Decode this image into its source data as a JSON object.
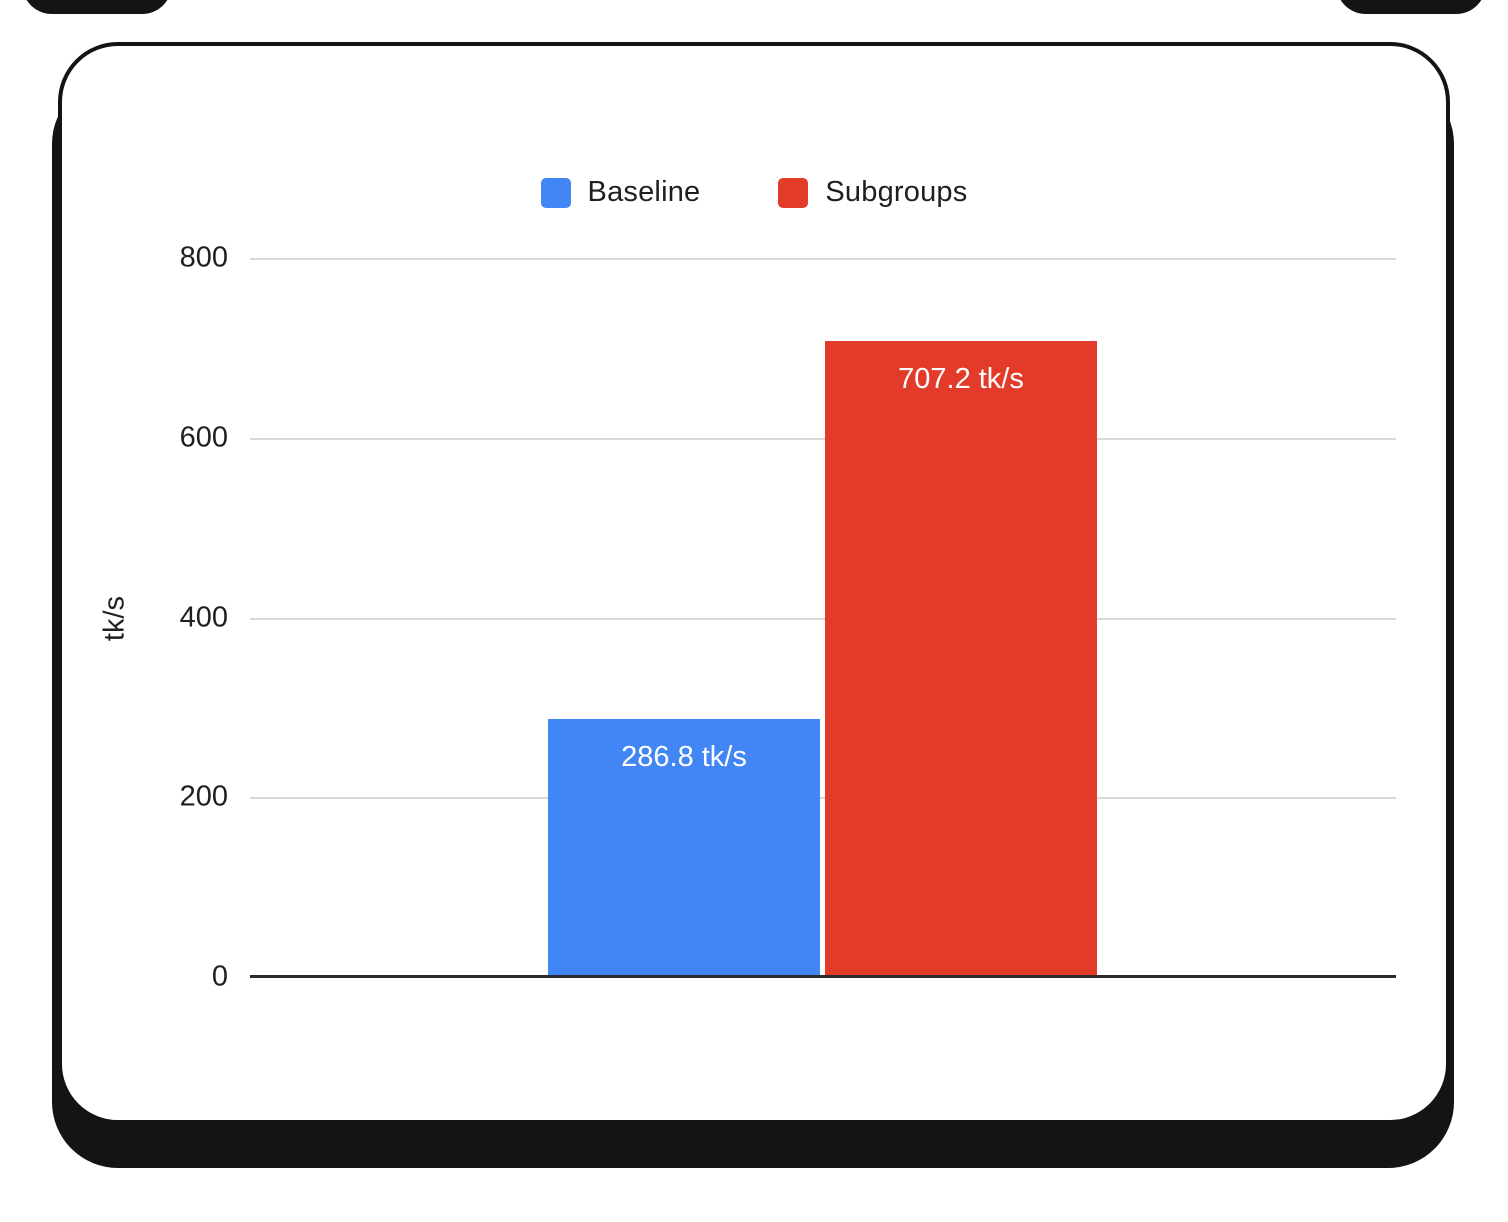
{
  "chart_data": {
    "type": "bar",
    "categories": [
      ""
    ],
    "series": [
      {
        "name": "Baseline",
        "values": [
          286.8
        ],
        "data_label": "286.8 tk/s",
        "color": "#4285F4"
      },
      {
        "name": "Subgroups",
        "values": [
          707.2
        ],
        "data_label": "707.2 tk/s",
        "color": "#E23B2A"
      }
    ],
    "title": "",
    "xlabel": "",
    "ylabel": "tk/s",
    "ylim": [
      0,
      800
    ],
    "yticks": [
      800,
      600,
      400,
      200,
      0
    ],
    "grid": true,
    "legend_position": "top"
  },
  "y_axis": {
    "title": "tk/s",
    "ticks": [
      "800",
      "600",
      "400",
      "200",
      "0"
    ]
  },
  "colors": {
    "baseline": "#4285F4",
    "subgroups": "#E23B2A",
    "gridline": "#d9d9d9",
    "axis": "#2b2b2b",
    "card_border": "#141414",
    "card_background": "#ffffff"
  }
}
